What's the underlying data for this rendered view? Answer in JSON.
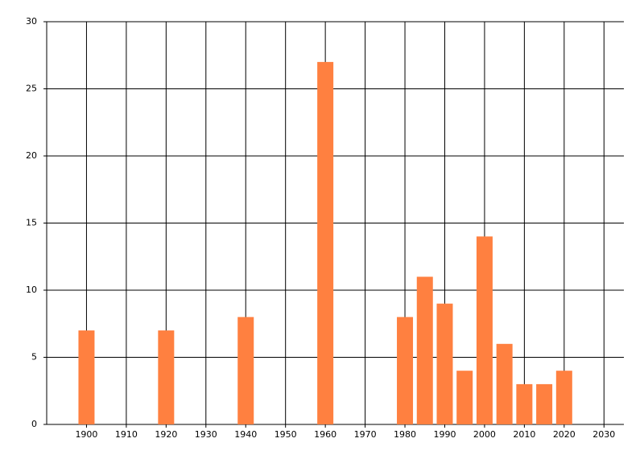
{
  "chart_data": {
    "type": "bar",
    "x": [
      1900,
      1920,
      1940,
      1960,
      1980,
      1985,
      1990,
      1995,
      2000,
      2005,
      2010,
      2015,
      2020
    ],
    "values": [
      7,
      7,
      8,
      27,
      8,
      11,
      9,
      4,
      14,
      6,
      3,
      3,
      4
    ],
    "color": "#ff8040",
    "xlim": [
      1890,
      2035
    ],
    "xticks": [
      1900,
      1910,
      1920,
      1930,
      1940,
      1950,
      1960,
      1970,
      1980,
      1990,
      2000,
      2010,
      2020,
      2030
    ],
    "ylim": [
      0,
      30
    ],
    "yticks": [
      0,
      5,
      10,
      15,
      20,
      25,
      30
    ],
    "grid": true
  }
}
